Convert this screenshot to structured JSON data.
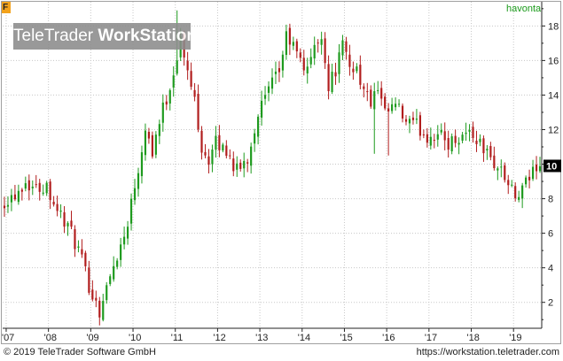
{
  "header": {
    "corner_letter": "F",
    "symbol": "havonta",
    "watermark_light": "TeleTrader ",
    "watermark_bold": "WorkStation"
  },
  "footer": {
    "copyright": "© 2019 TeleTrader Software GmbH",
    "url": "https://workstation.teletrader.com"
  },
  "colors": {
    "up": "#1e9a1e",
    "down": "#b11d1d",
    "grid": "#c8c8c8",
    "axis": "#222222",
    "last_price_bg": "#000000"
  },
  "chart_data": {
    "type": "candlestick",
    "interval": "monthly",
    "grid": true,
    "y_axis_side": "right",
    "ylim": [
      0.5,
      19.4
    ],
    "y_ticks": [
      2,
      4,
      6,
      8,
      10,
      12,
      14,
      16,
      18
    ],
    "x_ticks": [
      {
        "label": "'07",
        "year": 2007
      },
      {
        "label": "'08",
        "year": 2008
      },
      {
        "label": "'09",
        "year": 2009
      },
      {
        "label": "'10",
        "year": 2010
      },
      {
        "label": "'11",
        "year": 2011
      },
      {
        "label": "'12",
        "year": 2012
      },
      {
        "label": "'13",
        "year": 2013
      },
      {
        "label": "'14",
        "year": 2014
      },
      {
        "label": "'15",
        "year": 2015
      },
      {
        "label": "'16",
        "year": 2016
      },
      {
        "label": "'17",
        "year": 2017
      },
      {
        "label": "'18",
        "year": 2018
      },
      {
        "label": "'19",
        "year": 2019
      }
    ],
    "x_range": [
      "2006-12",
      "2019-08"
    ],
    "last_price_label": "10",
    "last_price": 9.9,
    "close_anchors": [
      [
        "2006-12",
        7.9
      ],
      [
        "2007-03",
        8.3
      ],
      [
        "2007-06",
        9.0
      ],
      [
        "2007-09",
        8.6
      ],
      [
        "2007-12",
        8.8
      ],
      [
        "2008-03",
        7.4
      ],
      [
        "2008-06",
        6.4
      ],
      [
        "2008-09",
        5.0
      ],
      [
        "2008-12",
        3.0
      ],
      [
        "2009-03",
        1.5
      ],
      [
        "2009-05",
        2.8
      ],
      [
        "2009-08",
        4.8
      ],
      [
        "2009-10",
        5.8
      ],
      [
        "2009-12",
        7.8
      ],
      [
        "2010-02",
        9.8
      ],
      [
        "2010-04",
        12.2
      ],
      [
        "2010-06",
        10.8
      ],
      [
        "2010-08",
        12.5
      ],
      [
        "2010-11",
        14.5
      ],
      [
        "2011-02",
        17.2
      ],
      [
        "2011-04",
        15.2
      ],
      [
        "2011-06",
        13.8
      ],
      [
        "2011-08",
        11.0
      ],
      [
        "2011-10",
        10.2
      ],
      [
        "2011-12",
        11.2
      ],
      [
        "2012-03",
        10.8
      ],
      [
        "2012-06",
        9.6
      ],
      [
        "2012-09",
        10.3
      ],
      [
        "2012-12",
        13.0
      ],
      [
        "2013-03",
        14.2
      ],
      [
        "2013-06",
        15.4
      ],
      [
        "2013-08",
        17.4
      ],
      [
        "2013-10",
        16.8
      ],
      [
        "2014-01",
        15.5
      ],
      [
        "2014-04",
        16.6
      ],
      [
        "2014-06",
        17.6
      ],
      [
        "2014-08",
        14.5
      ],
      [
        "2014-10",
        15.5
      ],
      [
        "2014-12",
        16.8
      ],
      [
        "2015-02",
        15.7
      ],
      [
        "2015-04",
        15.6
      ],
      [
        "2015-06",
        14.2
      ],
      [
        "2015-08",
        13.6
      ],
      [
        "2015-10",
        14.2
      ],
      [
        "2015-12",
        12.8
      ],
      [
        "2016-03",
        13.4
      ],
      [
        "2016-06",
        12.4
      ],
      [
        "2016-09",
        12.2
      ],
      [
        "2016-12",
        11.6
      ],
      [
        "2017-03",
        11.8
      ],
      [
        "2017-06",
        11.2
      ],
      [
        "2017-09",
        11.6
      ],
      [
        "2017-12",
        11.9
      ],
      [
        "2018-03",
        11.2
      ],
      [
        "2018-06",
        10.3
      ],
      [
        "2018-09",
        9.6
      ],
      [
        "2018-11",
        8.8
      ],
      [
        "2019-01",
        8.0
      ],
      [
        "2019-03",
        8.4
      ],
      [
        "2019-05",
        9.2
      ],
      [
        "2019-07",
        10.0
      ],
      [
        "2019-08",
        9.9
      ]
    ],
    "spikes": [
      {
        "date": "2009-04",
        "low": 0.9
      },
      {
        "date": "2011-01",
        "high": 18.9
      },
      {
        "date": "2015-09",
        "low": 10.6
      },
      {
        "date": "2016-01",
        "low": 10.5
      }
    ]
  }
}
